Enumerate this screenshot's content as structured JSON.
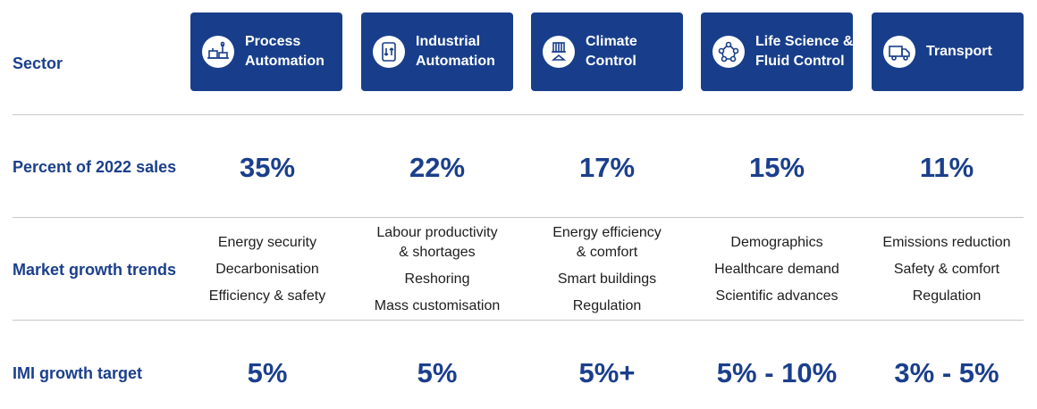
{
  "labels": {
    "sector": "Sector",
    "sales": "Percent of 2022 sales",
    "trends": "Market growth trends",
    "target": "IMI growth target"
  },
  "sectors": [
    {
      "name_lines": [
        "Process",
        "Automation"
      ],
      "icon": "process-automation-icon",
      "sales": "35%",
      "trends": [
        [
          "Energy security"
        ],
        [
          "Decarbonisation"
        ],
        [
          "Efficiency & safety"
        ]
      ],
      "target": "5%"
    },
    {
      "name_lines": [
        "Industrial",
        "Automation"
      ],
      "icon": "industrial-automation-icon",
      "sales": "22%",
      "trends": [
        [
          "Labour productivity",
          "& shortages"
        ],
        [
          "Reshoring"
        ],
        [
          "Mass customisation"
        ]
      ],
      "target": "5%"
    },
    {
      "name_lines": [
        "Climate",
        "Control"
      ],
      "icon": "climate-control-icon",
      "sales": "17%",
      "trends": [
        [
          "Energy efficiency",
          "& comfort"
        ],
        [
          "Smart buildings"
        ],
        [
          "Regulation"
        ]
      ],
      "target": "5%+"
    },
    {
      "name_lines": [
        "Life Science &",
        "Fluid Control"
      ],
      "icon": "life-science-icon",
      "sales": "15%",
      "trends": [
        [
          "Demographics"
        ],
        [
          "Healthcare demand"
        ],
        [
          "Scientific advances"
        ]
      ],
      "target": "5% - 10%"
    },
    {
      "name_lines": [
        "Transport"
      ],
      "icon": "transport-icon",
      "sales": "11%",
      "trends": [
        [
          "Emissions reduction"
        ],
        [
          "Safety & comfort"
        ],
        [
          "Regulation"
        ]
      ],
      "target": "3% - 5%"
    }
  ],
  "colors": {
    "accent": "#183e8b",
    "label": "#1b3f8c",
    "divider": "#c8c8c8"
  }
}
